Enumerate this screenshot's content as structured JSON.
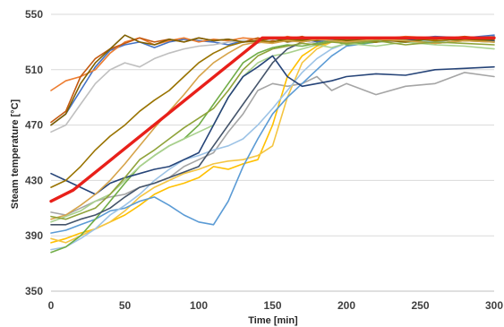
{
  "chart_data": {
    "type": "line",
    "title": "",
    "xlabel": "Time [min]",
    "ylabel": "Steam temperature [°C]",
    "xlim": [
      0,
      300
    ],
    "ylim": [
      350,
      550
    ],
    "xticks": [
      "0",
      "50",
      "100",
      "150",
      "200",
      "250",
      "300"
    ],
    "yticks": [
      "350",
      "390",
      "430",
      "470",
      "510",
      "550"
    ],
    "xtick_values": [
      0,
      50,
      100,
      150,
      200,
      250,
      300
    ],
    "ytick_values": [
      350,
      390,
      430,
      470,
      510,
      550
    ],
    "grid": "horizontal",
    "legend": "none",
    "reference": {
      "color": "#e8201a",
      "x": [
        0,
        15,
        143,
        300
      ],
      "y": [
        415,
        423,
        533,
        533
      ]
    },
    "series": [
      {
        "color": "#4472c4",
        "x": [
          0,
          10,
          20,
          30,
          40,
          50,
          60,
          70,
          80,
          90,
          100,
          110,
          120,
          130,
          140,
          150,
          160,
          170,
          180,
          190,
          200,
          220,
          240,
          260,
          280,
          300
        ],
        "y": [
          470,
          478,
          495,
          512,
          524,
          528,
          530,
          526,
          530,
          532,
          531,
          530,
          528,
          531,
          530,
          532,
          531,
          533,
          530,
          532,
          531,
          533,
          532,
          534,
          533,
          535
        ]
      },
      {
        "color": "#ed7d31",
        "x": [
          0,
          10,
          20,
          30,
          40,
          50,
          60,
          70,
          80,
          90,
          100,
          110,
          120,
          130,
          140,
          150,
          160,
          170,
          180,
          190,
          200,
          220,
          240,
          260,
          280,
          300
        ],
        "y": [
          495,
          502,
          505,
          510,
          522,
          530,
          533,
          528,
          531,
          533,
          530,
          532,
          531,
          533,
          532,
          531,
          534,
          532,
          533,
          531,
          533,
          532,
          534,
          533,
          531,
          533
        ]
      },
      {
        "color": "#c55a11",
        "x": [
          0,
          10,
          20,
          30,
          40,
          50,
          60,
          70,
          80,
          90,
          100,
          110,
          120,
          130,
          140,
          150,
          160,
          170,
          180,
          190,
          200,
          220,
          240,
          260,
          280,
          300
        ],
        "y": [
          472,
          480,
          505,
          518,
          525,
          529,
          533,
          530,
          532,
          530,
          533,
          531,
          532,
          530,
          533,
          531,
          532,
          534,
          531,
          533,
          532,
          531,
          533,
          532,
          534,
          532
        ]
      },
      {
        "color": "#a5a5a5",
        "x": [
          0,
          10,
          20,
          30,
          40,
          50,
          60,
          70,
          80,
          90,
          100,
          110,
          120,
          130,
          140,
          150,
          160,
          170,
          180,
          190,
          200,
          220,
          240,
          260,
          280,
          300
        ],
        "y": [
          407,
          405,
          410,
          415,
          418,
          420,
          425,
          428,
          432,
          440,
          445,
          450,
          465,
          478,
          495,
          500,
          498,
          500,
          505,
          495,
          500,
          492,
          498,
          500,
          508,
          505
        ]
      },
      {
        "color": "#bfbfbf",
        "x": [
          0,
          10,
          20,
          30,
          40,
          50,
          60,
          70,
          80,
          90,
          100,
          110,
          120,
          130,
          140,
          150,
          160,
          170,
          180,
          190,
          200,
          220,
          240,
          260,
          280,
          300
        ],
        "y": [
          465,
          470,
          485,
          500,
          510,
          515,
          512,
          518,
          522,
          525,
          527,
          528,
          530,
          531,
          529,
          532,
          530,
          531,
          529,
          530,
          532,
          530,
          531,
          529,
          531,
          530
        ]
      },
      {
        "color": "#ffc000",
        "x": [
          0,
          10,
          20,
          30,
          40,
          50,
          60,
          70,
          80,
          90,
          100,
          110,
          120,
          130,
          140,
          150,
          160,
          170,
          180,
          190,
          200,
          220,
          240,
          260,
          280,
          300
        ],
        "y": [
          385,
          388,
          392,
          395,
          400,
          405,
          412,
          420,
          425,
          428,
          432,
          440,
          438,
          442,
          445,
          470,
          505,
          520,
          527,
          530,
          532,
          530,
          533,
          531,
          532,
          534
        ]
      },
      {
        "color": "#f4c542",
        "x": [
          0,
          10,
          20,
          30,
          40,
          50,
          60,
          70,
          80,
          90,
          100,
          110,
          120,
          130,
          140,
          150,
          160,
          170,
          180,
          190,
          200,
          220,
          240,
          260,
          280,
          300
        ],
        "y": [
          388,
          385,
          390,
          395,
          400,
          408,
          418,
          425,
          430,
          435,
          438,
          442,
          444,
          445,
          448,
          455,
          490,
          515,
          525,
          530,
          531,
          532,
          530,
          533,
          531,
          532
        ]
      },
      {
        "color": "#5b9bd5",
        "x": [
          0,
          10,
          20,
          30,
          40,
          50,
          60,
          70,
          80,
          90,
          100,
          110,
          120,
          130,
          140,
          150,
          160,
          170,
          180,
          190,
          200,
          220,
          240,
          260,
          280,
          300
        ],
        "y": [
          392,
          394,
          398,
          402,
          408,
          410,
          415,
          418,
          412,
          405,
          400,
          398,
          415,
          440,
          460,
          478,
          490,
          500,
          510,
          520,
          527,
          530,
          532,
          533,
          531,
          534
        ]
      },
      {
        "color": "#9dc3e6",
        "x": [
          0,
          10,
          20,
          30,
          40,
          50,
          60,
          70,
          80,
          90,
          100,
          110,
          120,
          130,
          140,
          150,
          160,
          170,
          180,
          190,
          200,
          220,
          240,
          260,
          280,
          300
        ],
        "y": [
          380,
          382,
          388,
          395,
          405,
          412,
          420,
          430,
          438,
          445,
          448,
          452,
          455,
          460,
          470,
          482,
          495,
          508,
          518,
          525,
          529,
          531,
          532,
          530,
          533,
          531
        ]
      },
      {
        "color": "#70ad47",
        "x": [
          0,
          10,
          20,
          30,
          40,
          50,
          60,
          70,
          80,
          90,
          100,
          110,
          120,
          130,
          140,
          150,
          160,
          170,
          180,
          190,
          200,
          220,
          240,
          260,
          280,
          300
        ],
        "y": [
          378,
          382,
          390,
          402,
          415,
          428,
          440,
          448,
          455,
          460,
          470,
          485,
          500,
          515,
          522,
          526,
          528,
          527,
          529,
          531,
          528,
          530,
          532,
          529,
          531,
          530
        ]
      },
      {
        "color": "#a9d18e",
        "x": [
          0,
          10,
          20,
          30,
          40,
          50,
          60,
          70,
          80,
          90,
          100,
          110,
          120,
          130,
          140,
          150,
          160,
          170,
          180,
          190,
          200,
          220,
          240,
          260,
          280,
          300
        ],
        "y": [
          400,
          404,
          408,
          415,
          420,
          430,
          440,
          448,
          455,
          460,
          465,
          470,
          490,
          505,
          515,
          520,
          522,
          525,
          528,
          526,
          529,
          527,
          530,
          528,
          527,
          525
        ]
      },
      {
        "color": "#264478",
        "x": [
          0,
          10,
          20,
          30,
          40,
          50,
          60,
          70,
          80,
          90,
          100,
          110,
          120,
          130,
          140,
          150,
          160,
          170,
          180,
          190,
          200,
          220,
          240,
          260,
          280,
          300
        ],
        "y": [
          435,
          430,
          425,
          420,
          428,
          432,
          435,
          438,
          440,
          445,
          450,
          470,
          490,
          505,
          512,
          520,
          505,
          498,
          500,
          502,
          505,
          507,
          506,
          510,
          511,
          512
        ]
      },
      {
        "color": "#44546a",
        "x": [
          0,
          10,
          20,
          30,
          40,
          50,
          60,
          70,
          80,
          90,
          100,
          110,
          120,
          130,
          140,
          150,
          160,
          170,
          180,
          190,
          200,
          220,
          240,
          260,
          280,
          300
        ],
        "y": [
          398,
          398,
          402,
          405,
          410,
          418,
          425,
          428,
          432,
          436,
          440,
          455,
          470,
          485,
          500,
          515,
          525,
          530,
          532,
          531,
          533,
          532,
          531,
          533,
          532,
          531
        ]
      },
      {
        "color": "#997300",
        "x": [
          0,
          10,
          20,
          30,
          40,
          50,
          60,
          70,
          80,
          90,
          100,
          110,
          120,
          130,
          140,
          150,
          160,
          170,
          180,
          190,
          200,
          220,
          240,
          260,
          280,
          300
        ],
        "y": [
          425,
          430,
          440,
          452,
          462,
          470,
          480,
          488,
          495,
          505,
          515,
          522,
          527,
          530,
          531,
          530,
          532,
          531,
          533,
          531,
          532,
          530,
          533,
          531,
          532,
          530
        ]
      },
      {
        "color": "#7f6000",
        "x": [
          0,
          10,
          20,
          30,
          40,
          50,
          60,
          70,
          80,
          90,
          100,
          110,
          120,
          130,
          140,
          150,
          160,
          170,
          180,
          190,
          200,
          220,
          240,
          260,
          280,
          300
        ],
        "y": [
          470,
          478,
          500,
          515,
          525,
          535,
          530,
          528,
          532,
          530,
          533,
          531,
          532,
          530,
          531,
          533,
          530,
          532,
          531,
          533,
          531,
          532,
          530,
          533,
          531,
          532
        ]
      },
      {
        "color": "#d6a44a",
        "x": [
          0,
          10,
          20,
          30,
          40,
          50,
          60,
          70,
          80,
          90,
          100,
          110,
          120,
          130,
          140,
          150,
          160,
          170,
          180,
          190,
          200,
          220,
          240,
          260,
          280,
          300
        ],
        "y": [
          402,
          405,
          412,
          420,
          430,
          442,
          455,
          468,
          480,
          492,
          505,
          515,
          522,
          528,
          530,
          529,
          531,
          530,
          532,
          531,
          530,
          532,
          531,
          529,
          531,
          530
        ]
      },
      {
        "color": "#8fa33a",
        "x": [
          0,
          10,
          20,
          30,
          40,
          50,
          60,
          70,
          80,
          90,
          100,
          110,
          120,
          130,
          140,
          150,
          160,
          170,
          180,
          190,
          200,
          220,
          240,
          260,
          280,
          300
        ],
        "y": [
          404,
          402,
          406,
          410,
          420,
          432,
          445,
          452,
          460,
          468,
          475,
          482,
          495,
          510,
          520,
          525,
          527,
          529,
          528,
          530,
          529,
          531,
          528,
          530,
          529,
          528
        ]
      }
    ]
  }
}
